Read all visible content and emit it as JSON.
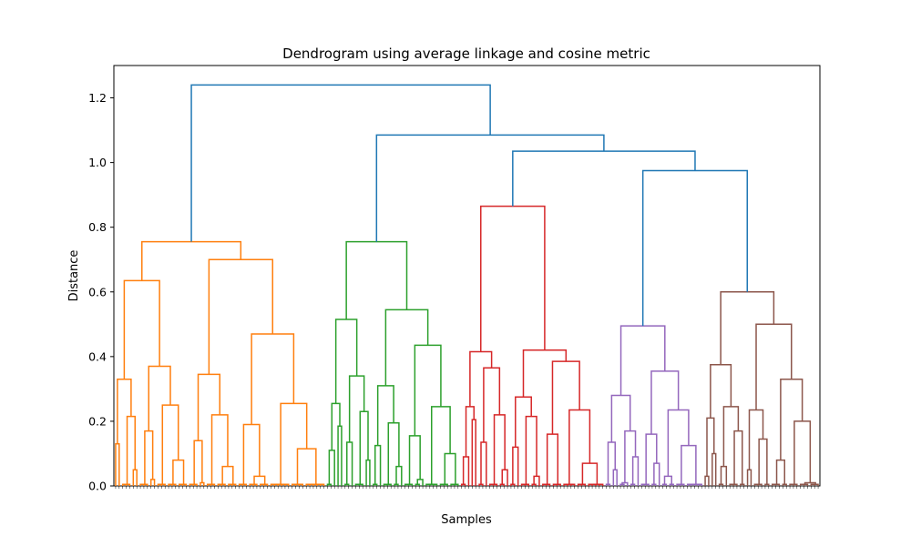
{
  "chart_data": {
    "type": "dendrogram",
    "title": "Dendrogram using average linkage and cosine metric",
    "xlabel": "Samples",
    "ylabel": "Distance",
    "ylim": [
      0,
      1.3
    ],
    "yticks": [
      "0.0",
      "0.2",
      "0.4",
      "0.6",
      "0.8",
      "1.0",
      "1.2"
    ],
    "grid": false,
    "leaf_count": 200,
    "leaf_labels_legible": false,
    "link_colors": {
      "above_threshold": "#1f77b4",
      "cluster_1": "#ff7f0e",
      "cluster_2": "#2ca02c",
      "cluster_3": "#d62728",
      "cluster_4": "#9467bd",
      "cluster_5": "#8c564b"
    },
    "top_merges": [
      {
        "height": 1.24,
        "joins": [
          "cluster_1",
          "clusters_2_to_5"
        ]
      },
      {
        "height": 1.085,
        "joins": [
          "cluster_2",
          "clusters_3_to_5"
        ]
      },
      {
        "height": 1.035,
        "joins": [
          "cluster_3",
          "clusters_4_to_5"
        ]
      },
      {
        "height": 0.975,
        "joins": [
          "cluster_4",
          "cluster_5"
        ]
      }
    ],
    "clusters": [
      {
        "id": "cluster_1",
        "color": "cluster_1",
        "root_height": 0.755,
        "internal_merge_heights": [
          0.7,
          0.635,
          0.47,
          0.37,
          0.345,
          0.33,
          0.255,
          0.25,
          0.22,
          0.215,
          0.19,
          0.17,
          0.14,
          0.13,
          0.115,
          0.08,
          0.06,
          0.05,
          0.03,
          0.02,
          0.01
        ]
      },
      {
        "id": "cluster_2",
        "color": "cluster_2",
        "root_height": 0.755,
        "internal_merge_heights": [
          0.545,
          0.515,
          0.435,
          0.34,
          0.31,
          0.255,
          0.245,
          0.23,
          0.195,
          0.185,
          0.155,
          0.135,
          0.125,
          0.11,
          0.1,
          0.08,
          0.06,
          0.04,
          0.02
        ]
      },
      {
        "id": "cluster_3",
        "color": "cluster_3",
        "root_height": 0.865,
        "internal_merge_heights": [
          0.42,
          0.415,
          0.385,
          0.365,
          0.275,
          0.245,
          0.235,
          0.22,
          0.215,
          0.205,
          0.16,
          0.135,
          0.12,
          0.09,
          0.07,
          0.05,
          0.03,
          0.01
        ]
      },
      {
        "id": "cluster_4",
        "color": "cluster_4",
        "root_height": 0.495,
        "internal_merge_heights": [
          0.355,
          0.28,
          0.235,
          0.17,
          0.16,
          0.135,
          0.125,
          0.09,
          0.07,
          0.05,
          0.03,
          0.01
        ]
      },
      {
        "id": "cluster_5",
        "color": "cluster_5",
        "root_height": 0.6,
        "internal_merge_heights": [
          0.5,
          0.375,
          0.33,
          0.245,
          0.235,
          0.21,
          0.2,
          0.17,
          0.145,
          0.1,
          0.08,
          0.06,
          0.05,
          0.03,
          0.01
        ]
      }
    ]
  }
}
